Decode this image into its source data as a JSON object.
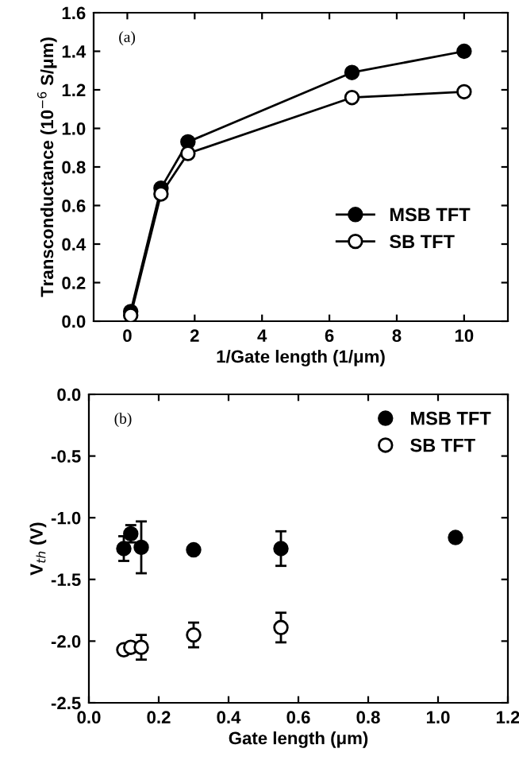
{
  "chart_data": [
    {
      "type": "line",
      "ylabel": "Transconductance (10$^{−6}$ S/μm)",
      "xlabel": "1/Gate length (1/μm)",
      "annotations": [
        "(a)"
      ],
      "xlim": [
        -1,
        11.3
      ],
      "xticks": [
        0,
        2,
        4,
        6,
        8,
        10
      ],
      "ylim": [
        0,
        1.6
      ],
      "yticks": [
        {
          "value": 0,
          "label": "0.0"
        },
        0.2,
        0.4,
        0.6,
        0.8,
        {
          "value": 1,
          "label": "1.0"
        },
        1.2,
        1.4,
        1.6
      ],
      "legend": "bottom right",
      "marker": "circle",
      "line_style": "solid",
      "grid": false,
      "series": [
        {
          "name": "MSB TFT",
          "color": "#000000",
          "x": [
            0.1,
            1,
            1.8,
            6.67,
            10
          ],
          "values": [
            0.05,
            0.69,
            0.93,
            1.29,
            1.4
          ]
        },
        {
          "name": "SB TFT",
          "color": "#ffffff",
          "x": [
            0.1,
            1,
            1.8,
            6.67,
            10
          ],
          "values": [
            0.03,
            0.66,
            0.87,
            1.16,
            1.19
          ]
        }
      ]
    },
    {
      "type": "scatter",
      "ylabel": "V$_{th}$ (V)",
      "xlabel": "Gate length (μm)",
      "annotations": [
        "(b)"
      ],
      "xlim": [
        0,
        1.2
      ],
      "xticks": [
        {
          "value": 0,
          "label": "0.0"
        },
        0.2,
        0.4,
        0.6,
        0.8,
        {
          "value": 1,
          "label": "1.0"
        },
        1.2
      ],
      "ylim": [
        -2.5,
        0
      ],
      "yticks": [
        -2.5,
        {
          "value": -2,
          "label": "-2.0"
        },
        -1.5,
        {
          "value": -1,
          "label": "-1.0"
        },
        -0.5,
        {
          "value": 0,
          "label": "0.0"
        }
      ],
      "legend": "top right",
      "marker": "circle",
      "grid": false,
      "series": [
        {
          "name": "MSB TFT",
          "color": "#000000",
          "x": [
            0.1,
            0.12,
            0.15,
            0.3,
            0.55,
            1.05
          ],
          "values": [
            -1.25,
            -1.13,
            -1.24,
            -1.26,
            -1.25,
            -1.16
          ],
          "errors": [
            0.1,
            0.07,
            0.21,
            null,
            0.14,
            0.02
          ]
        },
        {
          "name": "SB TFT",
          "color": "#ffffff",
          "x": [
            0.1,
            0.12,
            0.15,
            0.3,
            0.55
          ],
          "values": [
            -2.07,
            -2.05,
            -2.05,
            -1.95,
            -1.89
          ],
          "errors": [
            null,
            null,
            0.1,
            0.1,
            0.12
          ]
        }
      ]
    }
  ]
}
